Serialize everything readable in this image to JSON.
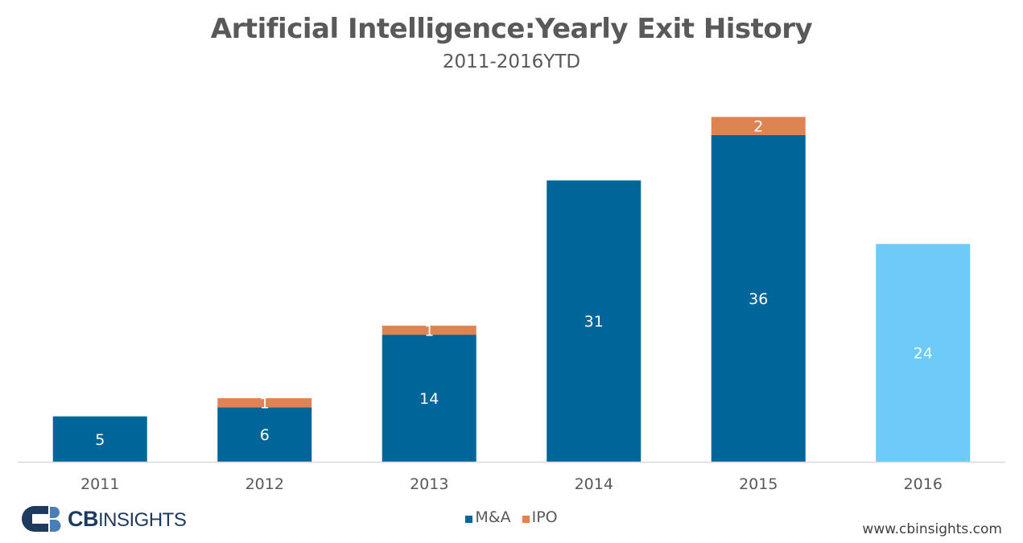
{
  "header": {
    "title": "Artificial Intelligence:Yearly Exit History",
    "subtitle": "2011-2016YTD"
  },
  "chart_data": {
    "type": "bar",
    "stacked": true,
    "title": "Artificial Intelligence:Yearly Exit History",
    "subtitle": "2011-2016YTD",
    "xlabel": "",
    "ylabel": "",
    "ylim": [
      0,
      40
    ],
    "grid": false,
    "categories": [
      "2011",
      "2012",
      "2013",
      "2014",
      "2015",
      "2016"
    ],
    "series": [
      {
        "name": "M&A",
        "color": "#006699",
        "values": [
          5,
          6,
          14,
          31,
          36,
          24
        ],
        "labels": [
          "5",
          "6",
          "14",
          "31",
          "36",
          "24"
        ]
      },
      {
        "name": "IPO",
        "color": "#dd8452",
        "values": [
          0,
          1,
          1,
          0,
          2,
          0
        ],
        "labels": [
          "",
          "1",
          "1",
          "",
          "2",
          ""
        ]
      }
    ],
    "highlight": {
      "category": "2016",
      "color": "#6ecaf8"
    },
    "legend_position": "bottom-center"
  },
  "legend": {
    "items": [
      {
        "label": "M&A",
        "color": "#006699"
      },
      {
        "label": "IPO",
        "color": "#dd8452"
      }
    ]
  },
  "footer": {
    "logo_text_bold": "CB",
    "logo_text": "INSIGHTS",
    "website": "www.cbinsights.com"
  },
  "colors": {
    "brand_dark": "#1e3a5f",
    "brand_light": "#4a7fb5",
    "axis": "#d9d9d9",
    "text": "#595959"
  }
}
